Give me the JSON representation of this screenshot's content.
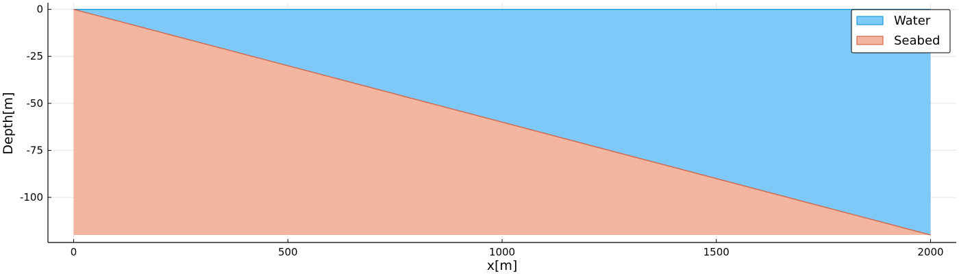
{
  "chart_data": {
    "type": "area",
    "title": "",
    "xlabel": "x[m]",
    "ylabel": "Depth[m]",
    "xlim": [
      -60,
      2060
    ],
    "ylim": [
      -124,
      3.5
    ],
    "xticks": [
      0,
      500,
      1000,
      1500,
      2000
    ],
    "yticks": [
      0,
      -25,
      -50,
      -75,
      -100
    ],
    "grid": true,
    "legend_position": "top-right",
    "series": [
      {
        "name": "Water",
        "color": "#7fc9f8",
        "edge_color": "#1a9bd7",
        "x": [
          0,
          2000
        ],
        "upper": [
          0,
          0
        ],
        "lower": [
          0,
          -120
        ]
      },
      {
        "name": "Seabed",
        "color": "#f1b5a0",
        "edge_color": "#d2694a",
        "x": [
          0,
          2000
        ],
        "upper": [
          0,
          -120
        ],
        "lower": [
          -120,
          -120
        ]
      }
    ]
  }
}
